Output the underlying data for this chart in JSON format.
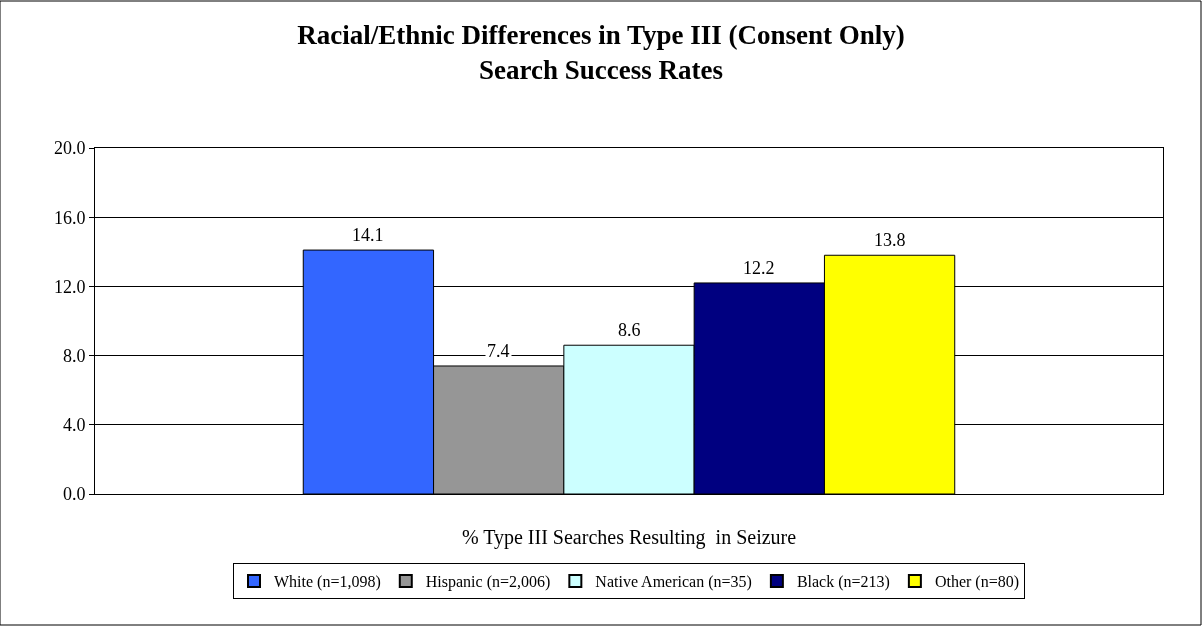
{
  "chart_data": {
    "type": "bar",
    "title": "Racial/Ethnic Differences in Type III (Consent Only)\nSearch Success Rates",
    "categories": [
      "% Type III Searches Resulting  in Seizure"
    ],
    "series": [
      {
        "name": "White (n=1,098)",
        "color": "#3366ff",
        "values": [
          14.1
        ]
      },
      {
        "name": "Hispanic (n=2,006)",
        "color": "#969696",
        "values": [
          7.4
        ]
      },
      {
        "name": "Native American (n=35)",
        "color": "#ccffff",
        "values": [
          8.6
        ]
      },
      {
        "name": "Black (n=213)",
        "color": "#000080",
        "values": [
          12.2
        ]
      },
      {
        "name": "Other (n=80)",
        "color": "#ffff00",
        "values": [
          13.8
        ]
      }
    ],
    "ylim": [
      0,
      20
    ],
    "yticks": [
      {
        "value": 0,
        "label": "0.0"
      },
      {
        "value": 4,
        "label": "4.0"
      },
      {
        "value": 8,
        "label": "8.0"
      },
      {
        "value": 12,
        "label": "12.0"
      },
      {
        "value": 16,
        "label": "16.0"
      },
      {
        "value": 20,
        "label": "20.0"
      }
    ],
    "grid": "y",
    "legend": "bottom",
    "data_labels": true
  }
}
